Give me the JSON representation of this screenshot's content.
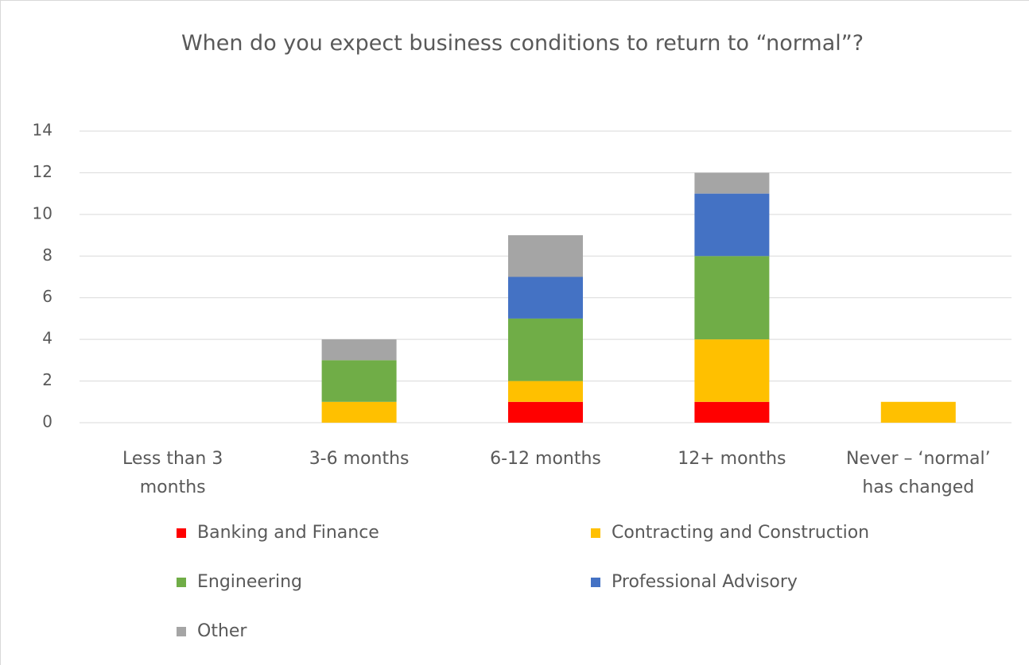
{
  "chart_data": {
    "type": "stacked_bar",
    "title": "When do you expect business conditions to return to “normal”?",
    "categories": [
      "Less than 3 months",
      "3-6 months",
      "6-12 months",
      "12+ months",
      "Never – ‘normal’ has changed"
    ],
    "series": [
      {
        "name": "Banking and Finance",
        "color": "#ff0000",
        "values": [
          0,
          0,
          1,
          1,
          0
        ]
      },
      {
        "name": "Contracting and Construction",
        "color": "#ffc000",
        "values": [
          0,
          1,
          1,
          3,
          1
        ]
      },
      {
        "name": "Engineering",
        "color": "#70ad47",
        "values": [
          0,
          2,
          3,
          4,
          0
        ]
      },
      {
        "name": "Professional Advisory",
        "color": "#4472c4",
        "values": [
          0,
          0,
          2,
          3,
          0
        ]
      },
      {
        "name": "Other",
        "color": "#a5a5a5",
        "values": [
          0,
          1,
          2,
          1,
          0
        ]
      }
    ],
    "ylim": [
      0,
      14
    ],
    "yticks": [
      0,
      2,
      4,
      6,
      8,
      10,
      12,
      14
    ],
    "grid": true,
    "legend": "bottom"
  }
}
